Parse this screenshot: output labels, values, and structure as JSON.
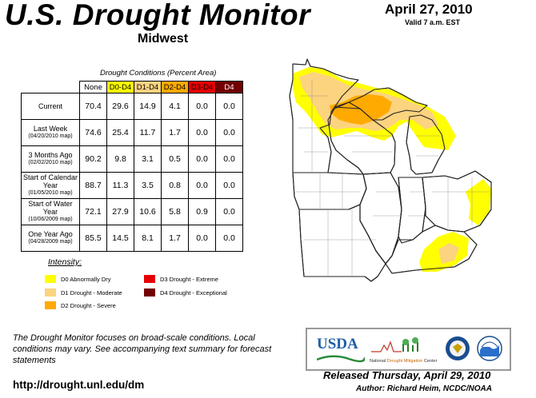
{
  "header": {
    "title": "U.S. Drought Monitor",
    "region": "Midwest",
    "date": "April 27, 2010",
    "valid": "Valid 7 a.m. EST"
  },
  "table": {
    "caption": "Drought Conditions (Percent Area)",
    "columns": [
      "None",
      "D0-D4",
      "D1-D4",
      "D2-D4",
      "D3-D4",
      "D4"
    ],
    "column_colors": [
      "#ffffff",
      "#ffff00",
      "#fcd37f",
      "#ffaa00",
      "#e60000",
      "#730000"
    ],
    "rows": [
      {
        "label": "Current",
        "sub": "",
        "values": [
          "70.4",
          "29.6",
          "14.9",
          "4.1",
          "0.0",
          "0.0"
        ]
      },
      {
        "label": "Last Week",
        "sub": "(04/20/2010 map)",
        "values": [
          "74.6",
          "25.4",
          "11.7",
          "1.7",
          "0.0",
          "0.0"
        ]
      },
      {
        "label": "3 Months Ago",
        "sub": "(02/02/2010 map)",
        "values": [
          "90.2",
          "9.8",
          "3.1",
          "0.5",
          "0.0",
          "0.0"
        ]
      },
      {
        "label": "Start of Calendar Year",
        "sub": "(01/05/2010 map)",
        "values": [
          "88.7",
          "11.3",
          "3.5",
          "0.8",
          "0.0",
          "0.0"
        ]
      },
      {
        "label": "Start of Water Year",
        "sub": "(10/06/2009 map)",
        "values": [
          "72.1",
          "27.9",
          "10.6",
          "5.8",
          "0.9",
          "0.0"
        ]
      },
      {
        "label": "One Year Ago",
        "sub": "(04/28/2009 map)",
        "values": [
          "85.5",
          "14.5",
          "8.1",
          "1.7",
          "0.0",
          "0.0"
        ]
      }
    ]
  },
  "legend": {
    "title": "Intensity:",
    "items": [
      {
        "label": "D0 Abnormally Dry",
        "color": "#ffff00"
      },
      {
        "label": "D1 Drought - Moderate",
        "color": "#fcd37f"
      },
      {
        "label": "D2 Drought - Severe",
        "color": "#ffaa00"
      },
      {
        "label": "D3 Drought - Extreme",
        "color": "#e60000"
      },
      {
        "label": "D4 Drought - Exceptional",
        "color": "#730000"
      }
    ]
  },
  "footer": {
    "note": "The Drought Monitor focuses on broad-scale conditions. Local conditions may vary. See accompanying text summary for forecast statements",
    "url": "http://drought.unl.edu/dm",
    "released": "Released Thursday, April 29, 2010",
    "author": "Author: Richard Heim, NCDC/NOAA"
  },
  "logos": {
    "usda": "USDA",
    "ndmc_prefix": "National",
    "ndmc_highlight": "Drought Mitigation",
    "ndmc_suffix": "Center"
  }
}
